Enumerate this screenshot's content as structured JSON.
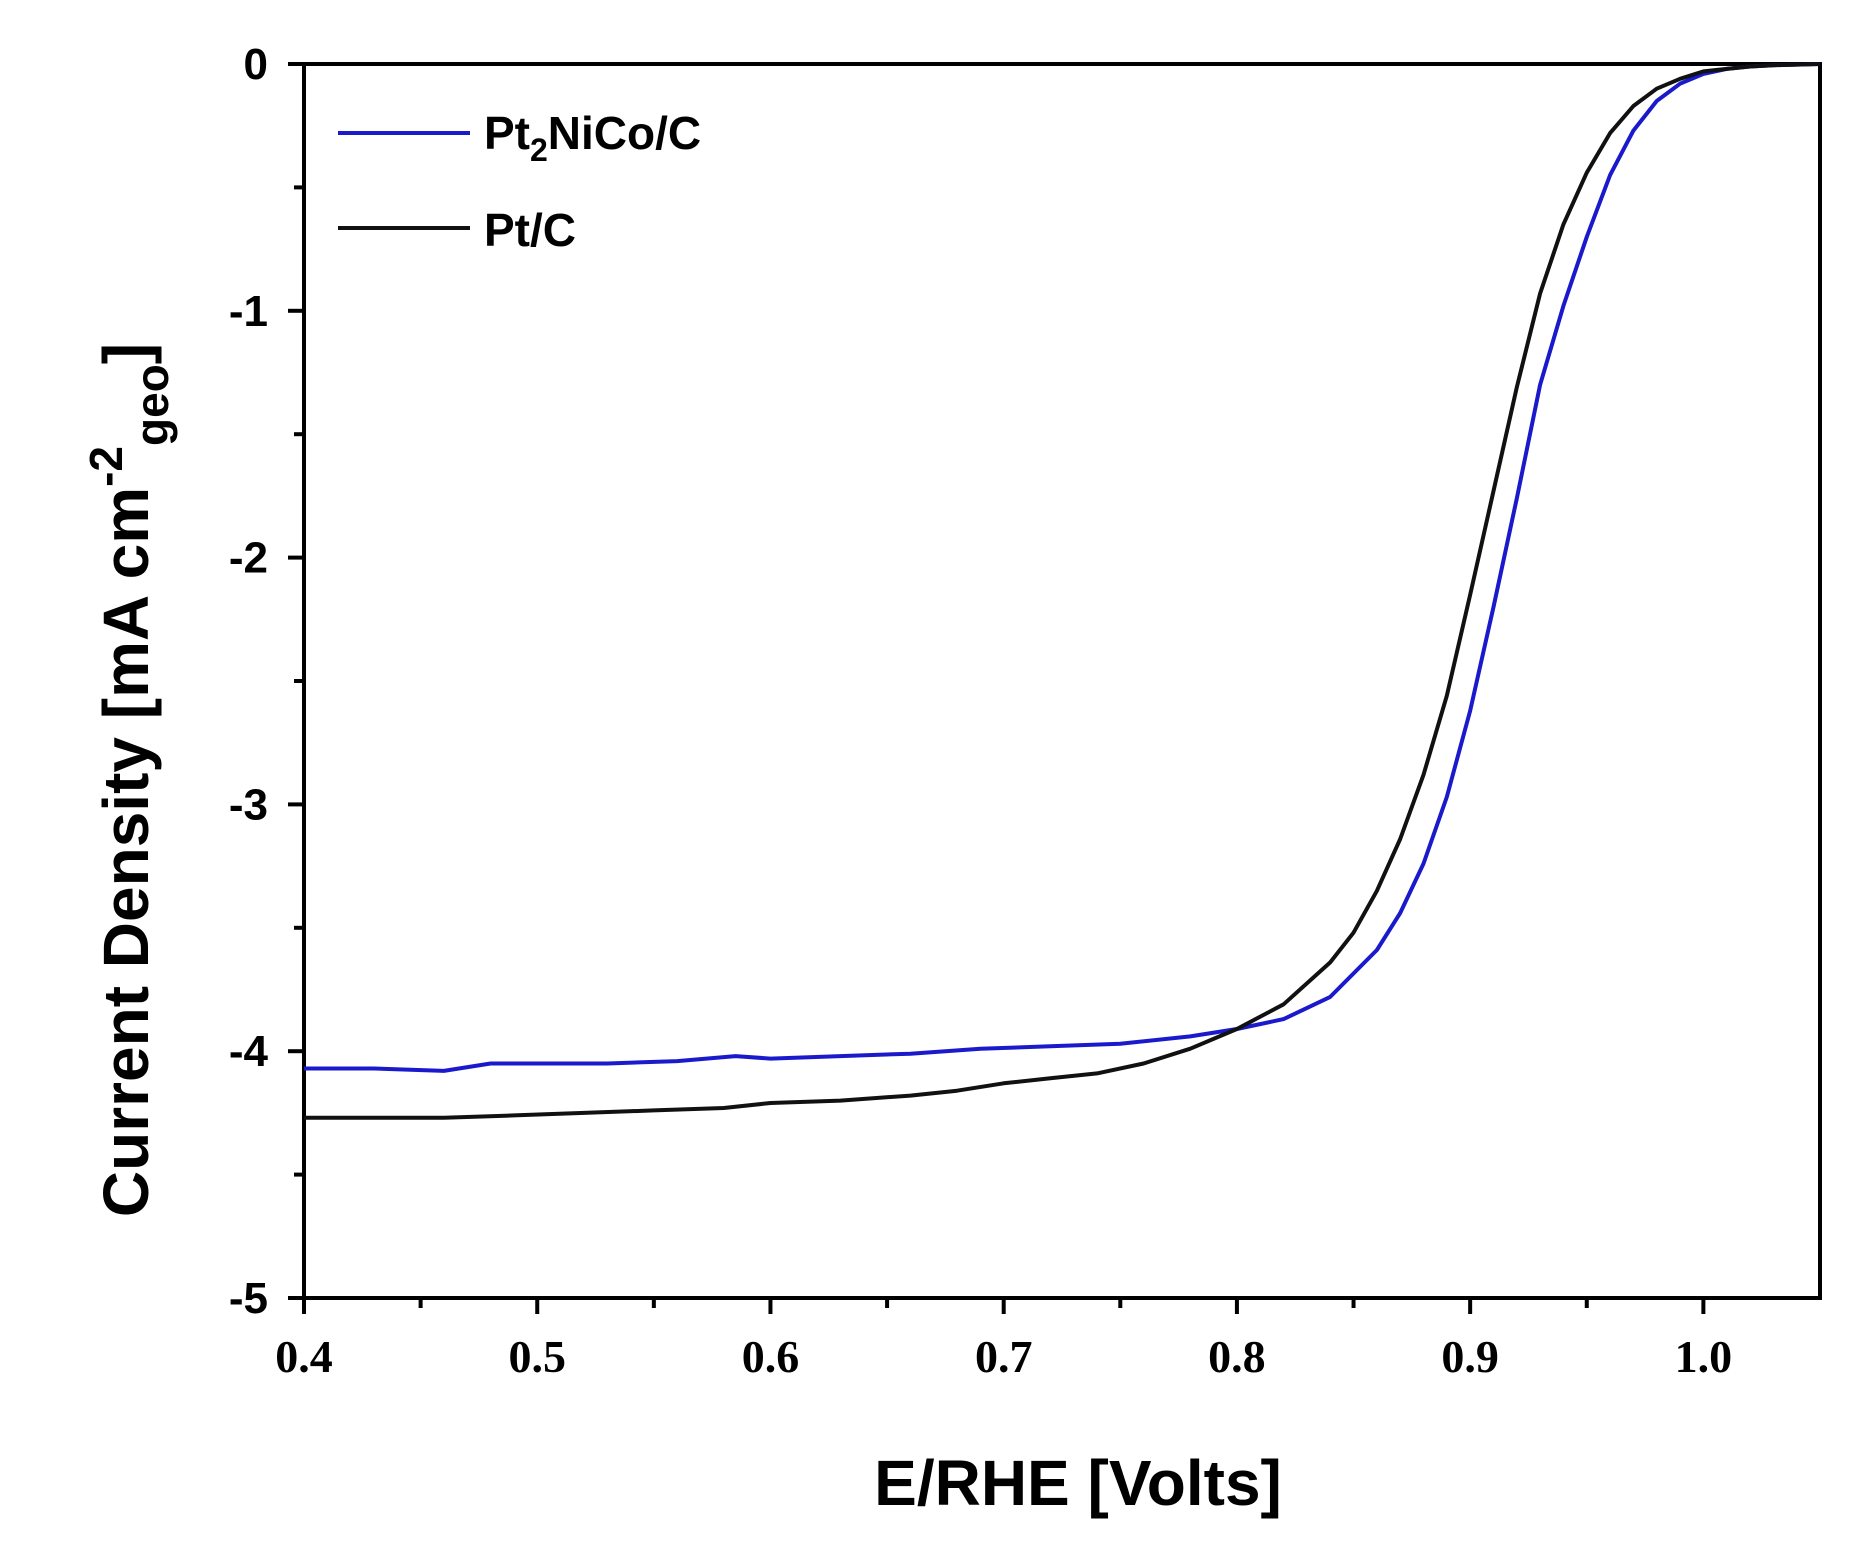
{
  "chart_data": {
    "type": "line",
    "xlabel": "E/RHE [Volts]",
    "ylabel": {
      "main": "Current Density [mA cm",
      "sup": "-2",
      "sub": "geo",
      "close": "]"
    },
    "xlim": [
      0.4,
      1.05
    ],
    "ylim": [
      -5,
      0
    ],
    "xticks": [
      "0.4",
      "0.5",
      "0.6",
      "0.7",
      "0.8",
      "0.9",
      "1.0"
    ],
    "yticks": [
      "0",
      "-1",
      "-2",
      "-3",
      "-4",
      "-5"
    ],
    "grid": false,
    "legend_position": "top-left",
    "series": [
      {
        "name": "Pt2NiCo/C",
        "legend": {
          "base": "Pt",
          "sub": "2",
          "rest": "NiCo/C"
        },
        "color": "#1a1acc",
        "x": [
          0.4,
          0.43,
          0.46,
          0.48,
          0.5,
          0.53,
          0.56,
          0.585,
          0.6,
          0.63,
          0.66,
          0.69,
          0.72,
          0.75,
          0.78,
          0.8,
          0.82,
          0.84,
          0.86,
          0.87,
          0.88,
          0.89,
          0.9,
          0.91,
          0.92,
          0.93,
          0.94,
          0.95,
          0.96,
          0.97,
          0.98,
          0.99,
          1.0,
          1.01,
          1.02,
          1.03,
          1.05
        ],
        "y": [
          -4.07,
          -4.07,
          -4.08,
          -4.05,
          -4.05,
          -4.05,
          -4.04,
          -4.02,
          -4.03,
          -4.02,
          -4.01,
          -3.99,
          -3.98,
          -3.97,
          -3.94,
          -3.91,
          -3.87,
          -3.78,
          -3.59,
          -3.44,
          -3.24,
          -2.97,
          -2.62,
          -2.2,
          -1.76,
          -1.3,
          -0.98,
          -0.7,
          -0.45,
          -0.27,
          -0.15,
          -0.08,
          -0.04,
          -0.02,
          -0.01,
          -0.005,
          0.0
        ]
      },
      {
        "name": "Pt/C",
        "legend": {
          "base": "Pt/C",
          "sub": "",
          "rest": ""
        },
        "color": "#111111",
        "x": [
          0.4,
          0.43,
          0.46,
          0.49,
          0.52,
          0.55,
          0.58,
          0.6,
          0.63,
          0.66,
          0.68,
          0.7,
          0.72,
          0.74,
          0.76,
          0.78,
          0.8,
          0.82,
          0.84,
          0.85,
          0.86,
          0.87,
          0.88,
          0.89,
          0.9,
          0.91,
          0.92,
          0.93,
          0.94,
          0.95,
          0.96,
          0.97,
          0.98,
          0.99,
          1.0,
          1.01,
          1.02,
          1.03,
          1.05
        ],
        "y": [
          -4.27,
          -4.27,
          -4.27,
          -4.26,
          -4.25,
          -4.24,
          -4.23,
          -4.21,
          -4.2,
          -4.18,
          -4.16,
          -4.13,
          -4.11,
          -4.09,
          -4.05,
          -3.99,
          -3.91,
          -3.81,
          -3.64,
          -3.52,
          -3.35,
          -3.14,
          -2.88,
          -2.56,
          -2.15,
          -1.73,
          -1.31,
          -0.93,
          -0.65,
          -0.44,
          -0.28,
          -0.17,
          -0.1,
          -0.06,
          -0.03,
          -0.02,
          -0.01,
          -0.005,
          0.0
        ]
      }
    ]
  }
}
